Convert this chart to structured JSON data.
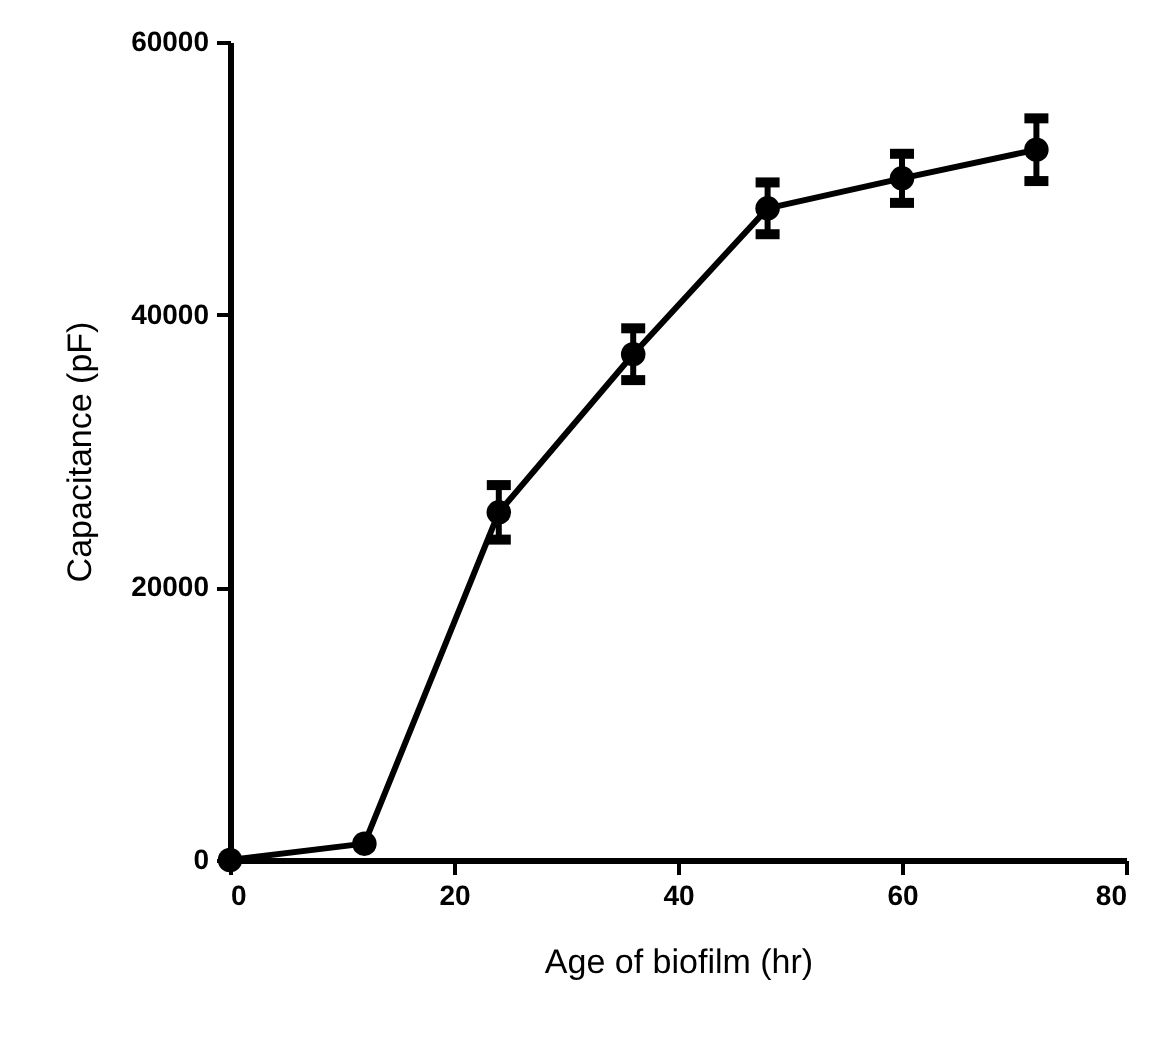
{
  "chart_data": {
    "type": "line",
    "xlabel": "Age of biofilm (hr)",
    "ylabel": "Capacitance (pF)",
    "x": [
      0,
      12,
      24,
      36,
      48,
      60,
      72
    ],
    "series": [
      {
        "color": "#000000",
        "values": [
          0,
          1200,
          25500,
          37100,
          47800,
          50000,
          52100
        ],
        "errors": [
          null,
          null,
          2000,
          1900,
          1900,
          1800,
          2300
        ]
      }
    ],
    "xlim": [
      0,
      80
    ],
    "xticks": [
      0,
      20,
      40,
      60,
      80
    ],
    "ylim": [
      0,
      60000
    ],
    "yticks": [
      0,
      20000,
      40000,
      60000
    ],
    "grid": false,
    "marker": "circle",
    "line_style": "solid"
  }
}
